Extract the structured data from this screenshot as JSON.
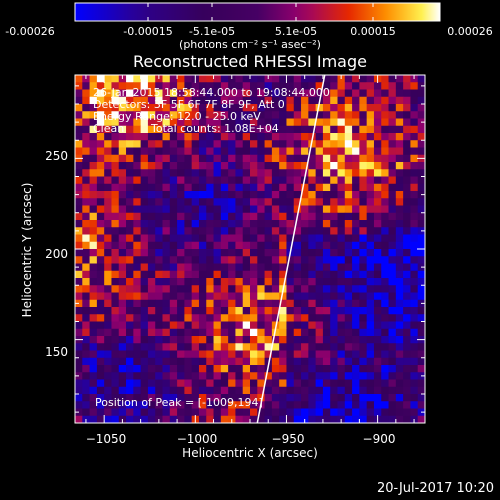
{
  "colorbar": {
    "tick_labels": [
      "-0.00026",
      "-0.00015",
      "-5.1e-05",
      "5.1e-05",
      "0.00015",
      "0.00026"
    ],
    "tick_values": [
      -0.00026,
      -0.00015,
      -5.1e-05,
      5.1e-05,
      0.00015,
      0.00026
    ],
    "units": "(photons cm⁻² s⁻¹ asec⁻²)"
  },
  "chart_data": {
    "type": "heatmap",
    "title": "Reconstructed RHESSI Image",
    "xlabel": "Heliocentric X (arcsec)",
    "ylabel": "Heliocentric Y (arcsec)",
    "xlim": [
      -1066,
      -874
    ],
    "ylim": [
      104,
      296
    ],
    "x_ticks": [
      -1050,
      -1000,
      -950,
      -900
    ],
    "y_ticks": [
      150,
      200,
      250
    ],
    "x_tick_labels": [
      "−1050",
      "−1000",
      "−950",
      "−900"
    ],
    "y_tick_labels": [
      "150",
      "200",
      "250"
    ],
    "limb_line": [
      [
        -966,
        104
      ],
      [
        -929,
        296
      ]
    ],
    "peak": [
      -1009,
      194
    ],
    "annotations": {
      "time_range": "26-Jan-2015 18:58:44.000 to 19:08:44.000",
      "detectors": "Detectors: 3F 5F 6F 7F 8F 9F, Att 0",
      "energy": "Energy Range: 12.0 - 25.0 keV",
      "method": "Clean",
      "counts": "Total counts: 1.08E+04",
      "peak_label": "Position of Peak = [-1009,194]"
    }
  },
  "footer": {
    "date": "20-Jul-2017 10:20"
  }
}
